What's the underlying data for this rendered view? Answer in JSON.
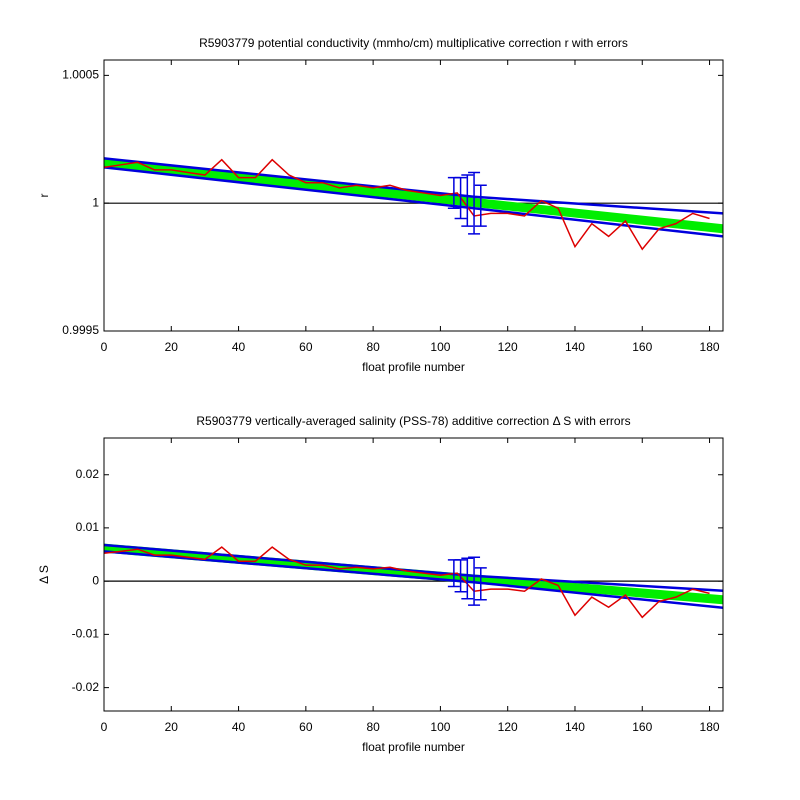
{
  "chart_data": [
    {
      "type": "line",
      "title": "R5903779 potential conductivity (mmho/cm) multiplicative correction r with errors",
      "xlabel": "float profile number",
      "ylabel": "r",
      "xlim": [
        0,
        184
      ],
      "ylim": [
        0.9995,
        1.00056
      ],
      "xticks": [
        0,
        20,
        40,
        60,
        80,
        100,
        120,
        140,
        160,
        180
      ],
      "yticks": [
        0.9995,
        1,
        1.0005
      ],
      "reference": 1,
      "series": [
        {
          "color": "#00ee00",
          "width": 9,
          "x": [
            0,
            110,
            184
          ],
          "values": [
            1.000158,
            1.000003,
            0.9999
          ]
        },
        {
          "color": "#0000dd",
          "width": 2.5,
          "x": [
            0,
            110,
            184
          ],
          "values": [
            1.000175,
            1.000025,
            0.99996
          ]
        },
        {
          "color": "#0000dd",
          "width": 2.5,
          "x": [
            0,
            110,
            184
          ],
          "values": [
            1.00014,
            0.99998,
            0.99987
          ]
        },
        {
          "color": "#dd0000",
          "width": 1.5,
          "x": [
            0,
            5,
            10,
            15,
            20,
            25,
            30,
            35,
            40,
            45,
            50,
            55,
            60,
            65,
            70,
            75,
            80,
            85,
            90,
            95,
            100,
            105,
            110,
            115,
            120,
            125,
            130,
            135,
            140,
            145,
            150,
            155,
            160,
            165,
            170,
            175,
            180
          ],
          "values": [
            1.00014,
            1.00015,
            1.00016,
            1.00013,
            1.00013,
            1.00012,
            1.00011,
            1.00017,
            1.0001,
            1.0001,
            1.00017,
            1.00011,
            1.00008,
            1.00008,
            1.00006,
            1.00007,
            1.00006,
            1.00007,
            1.00005,
            1.00004,
            1.00003,
            1.00004,
            0.99995,
            0.99996,
            0.99996,
            0.99995,
            1.00001,
            0.99998,
            0.99983,
            0.99992,
            0.99987,
            0.99993,
            0.99982,
            0.9999,
            0.99992,
            0.99996,
            0.99994
          ]
        }
      ],
      "errorbars": {
        "color": "#0000dd",
        "x": [
          104,
          106,
          108,
          110,
          112
        ],
        "values": [
          1.00004,
          1.00002,
          1.00001,
          1.0,
          0.99999
        ],
        "errors": [
          6e-05,
          8e-05,
          0.0001,
          0.00012,
          8e-05
        ]
      }
    },
    {
      "type": "line",
      "title": "R5903779 vertically-averaged salinity (PSS-78) additive correction Δ S with errors",
      "xlabel": "float profile number",
      "ylabel": "Δ S",
      "xlim": [
        0,
        184
      ],
      "ylim": [
        -0.0244,
        0.0269
      ],
      "xticks": [
        0,
        20,
        40,
        60,
        80,
        100,
        120,
        140,
        160,
        180
      ],
      "yticks": [
        -0.02,
        -0.01,
        0,
        0.01,
        0.02
      ],
      "reference": 0,
      "series": [
        {
          "color": "#00ee00",
          "width": 9,
          "x": [
            0,
            110,
            184
          ],
          "values": [
            0.0062,
            0.0004,
            -0.0035
          ]
        },
        {
          "color": "#0000dd",
          "width": 2.5,
          "x": [
            0,
            110,
            184
          ],
          "values": [
            0.0068,
            0.001,
            -0.0018
          ]
        },
        {
          "color": "#0000dd",
          "width": 2.5,
          "x": [
            0,
            110,
            184
          ],
          "values": [
            0.0056,
            -0.0002,
            -0.005
          ]
        },
        {
          "color": "#dd0000",
          "width": 1.5,
          "x": [
            0,
            5,
            10,
            15,
            20,
            25,
            30,
            35,
            40,
            45,
            50,
            55,
            60,
            65,
            70,
            75,
            80,
            85,
            90,
            95,
            100,
            105,
            110,
            115,
            120,
            125,
            130,
            135,
            140,
            145,
            150,
            155,
            160,
            165,
            170,
            175,
            180
          ],
          "values": [
            0.00525,
            0.0056,
            0.006,
            0.0049,
            0.0049,
            0.0045,
            0.0041,
            0.0064,
            0.00375,
            0.00375,
            0.0064,
            0.0041,
            0.003,
            0.003,
            0.0023,
            0.0026,
            0.0023,
            0.0026,
            0.0019,
            0.0015,
            0.0011,
            0.0015,
            -0.0019,
            -0.0015,
            -0.0015,
            -0.0019,
            0.0004,
            -0.0008,
            -0.0064,
            -0.003,
            -0.0049,
            -0.0026,
            -0.0068,
            -0.0038,
            -0.003,
            -0.0015,
            -0.0023
          ]
        }
      ],
      "errorbars": {
        "color": "#0000dd",
        "x": [
          104,
          106,
          108,
          110,
          112
        ],
        "values": [
          0.0015,
          0.001,
          0.0005,
          0.0,
          -0.0005
        ],
        "errors": [
          0.0025,
          0.003,
          0.0038,
          0.0045,
          0.003
        ]
      }
    }
  ]
}
